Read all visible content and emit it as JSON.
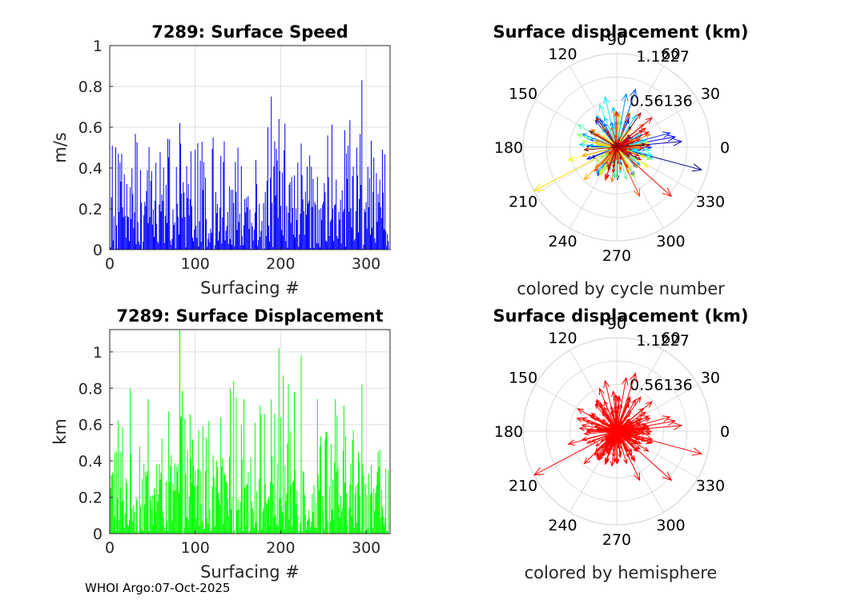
{
  "footer": "WHOI Argo:07-Oct-2025",
  "chart_data": [
    {
      "id": "speed",
      "type": "bar",
      "title": "7289: Surface Speed",
      "xlabel": "Surfacing #",
      "ylabel": "m/s",
      "xlim": [
        0,
        328
      ],
      "ylim": [
        0,
        1
      ],
      "xticks": [
        0,
        100,
        200,
        300
      ],
      "yticks": [
        0,
        0.2,
        0.4,
        0.6,
        0.8,
        1
      ],
      "ytick_labels": [
        "0",
        "0.2",
        "0.4",
        "0.6",
        "0.8",
        "1"
      ],
      "grid": true,
      "color": "#0000ff",
      "seed": 7289,
      "n": 326,
      "base_max": 0.45,
      "peaks": [
        [
          3,
          0.51
        ],
        [
          10,
          0.47
        ],
        [
          14,
          0.47
        ],
        [
          36,
          0.39
        ],
        [
          44,
          0.39
        ],
        [
          82,
          0.62
        ],
        [
          100,
          0.49
        ],
        [
          121,
          0.55
        ],
        [
          134,
          0.53
        ],
        [
          150,
          0.5
        ],
        [
          171,
          0.44
        ],
        [
          185,
          0.6
        ],
        [
          189,
          0.75
        ],
        [
          198,
          0.64
        ],
        [
          224,
          0.52
        ],
        [
          255,
          0.56
        ],
        [
          279,
          0.51
        ],
        [
          295,
          0.83
        ],
        [
          304,
          0.35
        ],
        [
          320,
          0.28
        ]
      ]
    },
    {
      "id": "rose",
      "type": "polar",
      "title": "Surface displacement (km)",
      "caption": "colored by cycle number",
      "r_ticks": [
        "0.56136",
        "1.1227"
      ],
      "r_max": 1.1227,
      "theta_labels": [
        "0",
        "30",
        "60",
        "90",
        "120",
        "150",
        "180",
        "210",
        "240",
        "270",
        "300",
        "330"
      ],
      "colormap": "jet",
      "seed": 97,
      "n": 326,
      "arrows_km": [
        [
          1.05,
          345
        ],
        [
          0.78,
          5
        ],
        [
          0.71,
          10
        ],
        [
          0.66,
          15
        ],
        [
          0.73,
          72
        ],
        [
          0.65,
          80
        ],
        [
          0.48,
          95
        ],
        [
          0.62,
          103
        ],
        [
          0.55,
          112
        ],
        [
          0.54,
          150
        ],
        [
          0.5,
          162
        ],
        [
          0.42,
          170
        ],
        [
          0.6,
          195
        ],
        [
          1.12,
          208
        ],
        [
          0.55,
          225
        ],
        [
          0.42,
          262
        ],
        [
          0.65,
          295
        ],
        [
          0.88,
          318
        ],
        [
          0.55,
          40
        ],
        [
          0.5,
          55
        ]
      ]
    },
    {
      "id": "displacement",
      "type": "bar",
      "title": "7289: Surface Displacement",
      "xlabel": "Surfacing #",
      "ylabel": "km",
      "xlim": [
        0,
        328
      ],
      "ylim": [
        0,
        1.1227
      ],
      "xticks": [
        0,
        100,
        200,
        300
      ],
      "yticks": [
        0,
        0.2,
        0.4,
        0.6,
        0.8,
        1
      ],
      "ytick_labels": [
        "0",
        "0.2",
        "0.4",
        "0.6",
        "0.8",
        "1"
      ],
      "grid": true,
      "color": "#00ff00",
      "seed": 1234,
      "n": 326,
      "base_max": 0.55,
      "peaks": [
        [
          4,
          0.34
        ],
        [
          45,
          0.74
        ],
        [
          82,
          1.12
        ],
        [
          88,
          0.63
        ],
        [
          104,
          0.57
        ],
        [
          116,
          0.62
        ],
        [
          130,
          0.64
        ],
        [
          145,
          0.84
        ],
        [
          157,
          0.74
        ],
        [
          170,
          0.61
        ],
        [
          181,
          0.66
        ],
        [
          193,
          0.66
        ],
        [
          198,
          1.02
        ],
        [
          203,
          0.87
        ],
        [
          216,
          0.78
        ],
        [
          224,
          0.98
        ],
        [
          243,
          0.74
        ],
        [
          253,
          0.56
        ],
        [
          264,
          0.74
        ],
        [
          295,
          0.82
        ],
        [
          314,
          0.45
        ]
      ]
    },
    {
      "id": "rose_hemi",
      "type": "polar",
      "title": "Surface displacement (km)",
      "caption": "colored by hemisphere",
      "r_ticks": [
        "0.56136",
        "1.1227"
      ],
      "r_max": 1.1227,
      "theta_labels": [
        "0",
        "30",
        "60",
        "90",
        "120",
        "150",
        "180",
        "210",
        "240",
        "270",
        "300",
        "330"
      ],
      "color": "#ff0000",
      "seed": 97,
      "n": 326
    }
  ]
}
